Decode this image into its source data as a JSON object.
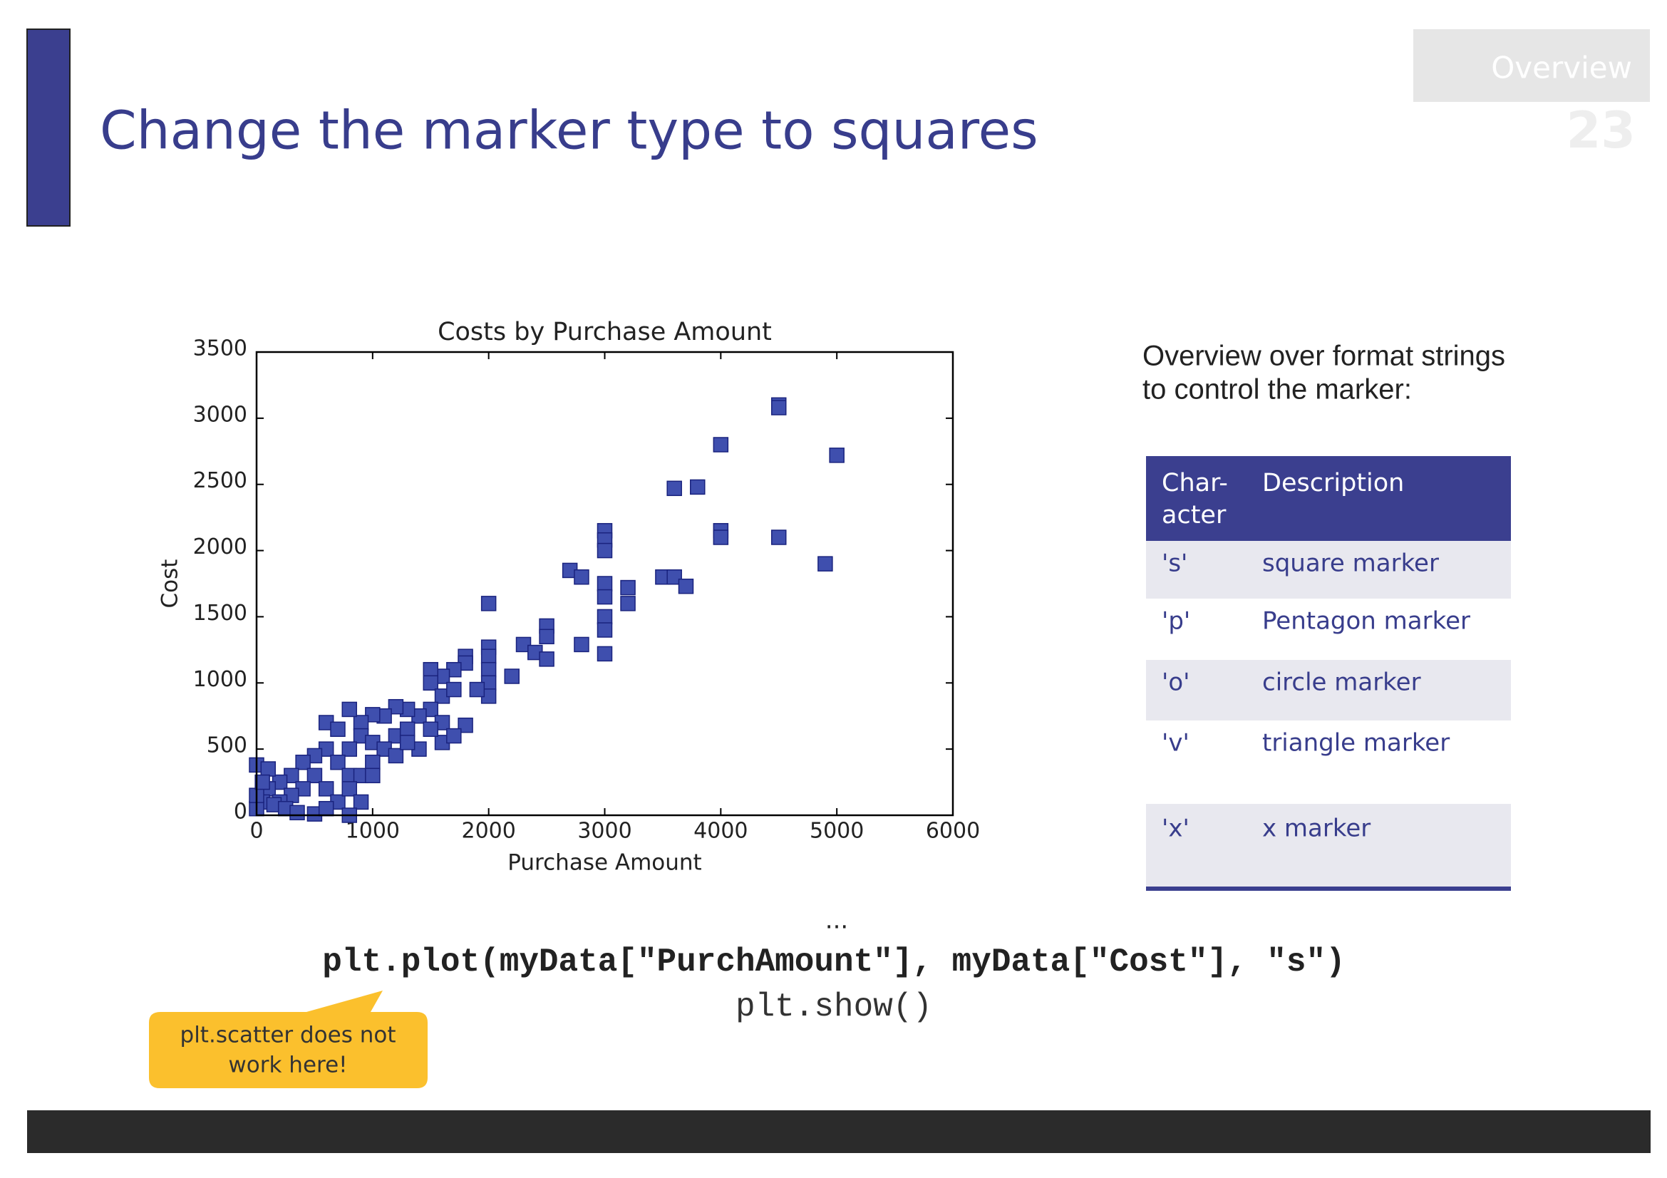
{
  "header": {
    "title": "Change the marker type to squares",
    "section": "Overview",
    "page": "23"
  },
  "chart_data": {
    "type": "scatter",
    "title": "Costs by Purchase Amount",
    "x_label": "Purchase Amount",
    "y_label": "Cost",
    "color": "#3f4fae",
    "marker": "s",
    "xlim": [
      0,
      6000
    ],
    "ylim": [
      0,
      3500
    ],
    "xticks": [
      0,
      1000,
      2000,
      3000,
      4000,
      5000,
      6000
    ],
    "yticks": [
      0,
      500,
      1000,
      1500,
      2000,
      2500,
      3000,
      3500
    ],
    "x": [
      4500,
      4500,
      5000,
      4000,
      3600,
      3800,
      4000,
      4000,
      4500,
      4900,
      3000,
      3000,
      3000,
      2700,
      2800,
      3000,
      3000,
      3200,
      3200,
      3500,
      3600,
      3700,
      3000,
      3000,
      3000,
      2800,
      2500,
      2500,
      2300,
      2400,
      2500,
      2200,
      2000,
      2000,
      2000,
      2000,
      2000,
      2000,
      1800,
      1800,
      1700,
      1600,
      1500,
      1500,
      1600,
      1700,
      1900,
      1800,
      1500,
      1400,
      1600,
      1300,
      1200,
      1100,
      1000,
      900,
      800,
      600,
      700,
      900,
      1000,
      1200,
      1300,
      1100,
      800,
      600,
      500,
      400,
      300,
      200,
      100,
      50,
      0,
      0,
      100,
      700,
      500,
      400,
      300,
      200,
      600,
      800,
      900,
      1000,
      1200,
      1400,
      1600,
      1700,
      0,
      50,
      150,
      250,
      350,
      500,
      700,
      800,
      1000,
      900,
      800,
      600,
      1300,
      1500
    ],
    "y": [
      3100,
      3080,
      2720,
      2800,
      2470,
      2480,
      2150,
      2100,
      2100,
      1900,
      2150,
      2080,
      2000,
      1850,
      1800,
      1750,
      1650,
      1720,
      1600,
      1800,
      1800,
      1730,
      1500,
      1400,
      1220,
      1290,
      1430,
      1350,
      1290,
      1230,
      1180,
      1050,
      1600,
      1270,
      1200,
      1100,
      1000,
      900,
      1200,
      1150,
      1100,
      1050,
      1100,
      1000,
      900,
      950,
      950,
      680,
      800,
      750,
      700,
      800,
      820,
      750,
      760,
      700,
      800,
      700,
      650,
      600,
      550,
      600,
      650,
      500,
      500,
      500,
      450,
      400,
      300,
      250,
      200,
      100,
      50,
      380,
      350,
      400,
      300,
      200,
      150,
      100,
      200,
      300,
      300,
      400,
      450,
      500,
      550,
      600,
      150,
      250,
      80,
      50,
      20,
      10,
      100,
      200,
      300,
      100,
      0,
      50,
      550,
      650
    ]
  },
  "side_note": [
    "Overview over format strings",
    "to control the marker:"
  ],
  "table": {
    "header": [
      [
        "Char-",
        "acter"
      ],
      "Description"
    ],
    "rows": [
      [
        "'s'",
        "square marker"
      ],
      [
        "'p'",
        "Pentagon marker"
      ],
      [
        "'o'",
        "circle marker"
      ],
      [
        "'v'",
        "triangle marker"
      ],
      [
        "'x'",
        "x marker"
      ]
    ]
  },
  "ellipsis": "...",
  "code": [
    "plt.plot(myData[\"PurchAmount\"], myData[\"Cost\"], \"s\")",
    "plt.show()"
  ],
  "callout": [
    "plt.scatter does not",
    "work here!"
  ]
}
